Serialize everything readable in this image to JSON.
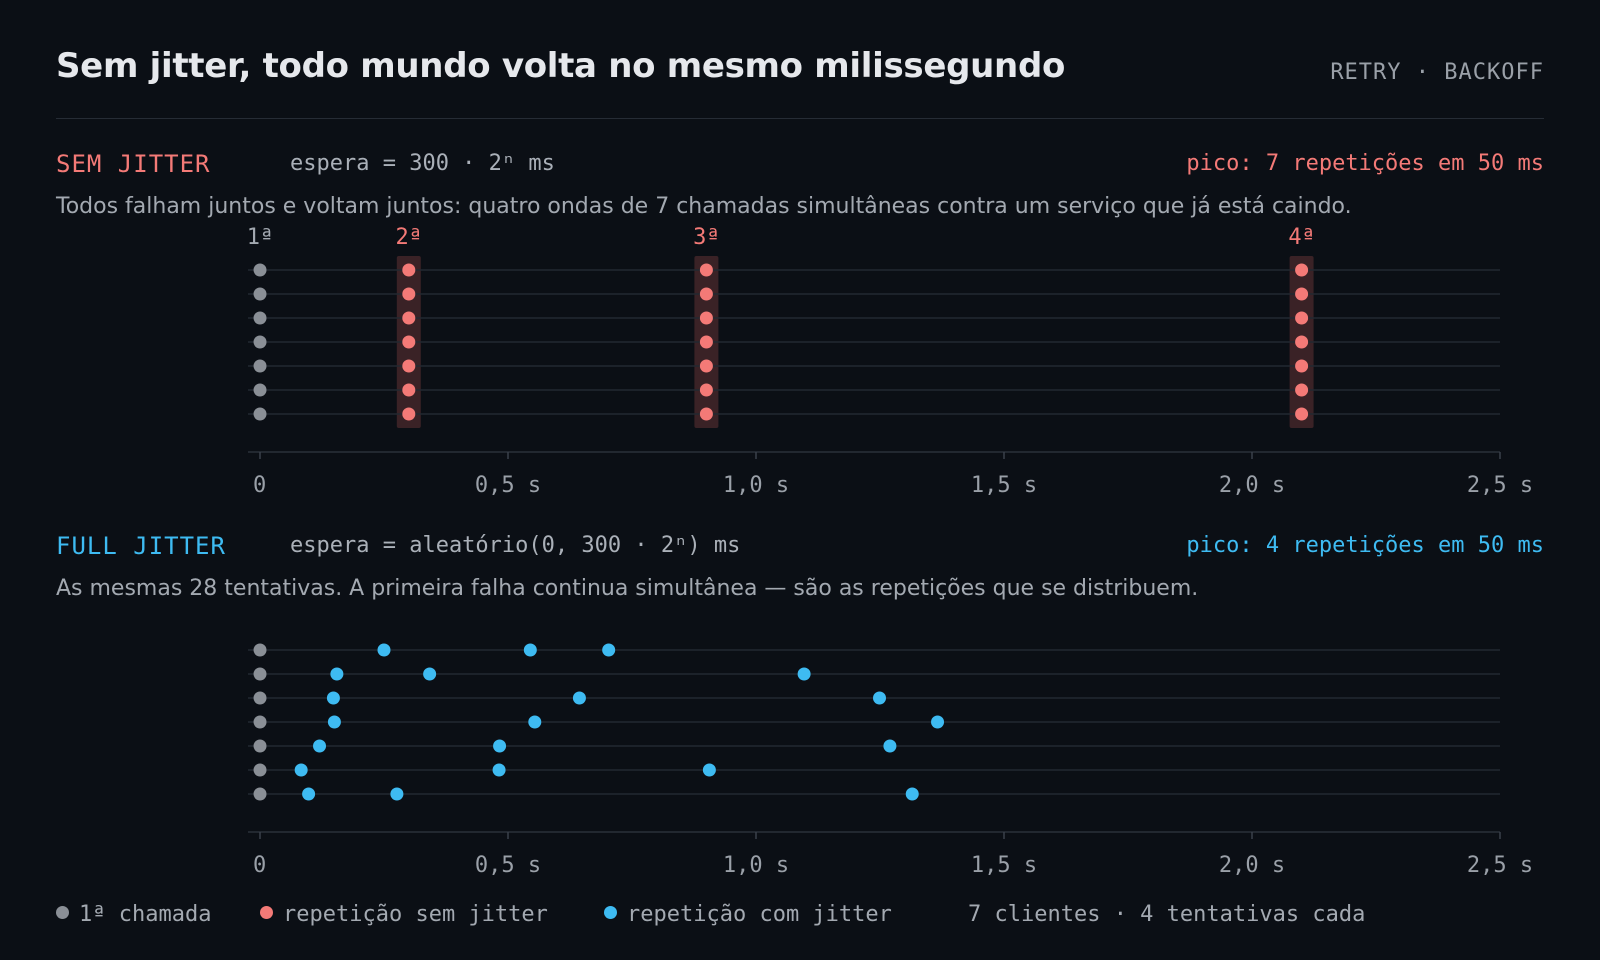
{
  "header": {
    "title": "Sem jitter, todo mundo volta no mesmo milissegundo",
    "kicker": "RETRY · BACKOFF"
  },
  "panels": [
    {
      "label": "SEM JITTER",
      "formula": "espera = 300 · 2ⁿ ms",
      "peak": "pico: 7 repetições em 50 ms",
      "description": "Todos falham juntos e voltam juntos: quatro ondas de 7 chamadas simultâneas contra um serviço que já está caindo."
    },
    {
      "label": "FULL JITTER",
      "formula": "espera = aleatório(0, 300 · 2ⁿ) ms",
      "peak": "pico: 4 repetições em 50 ms",
      "description": "As mesmas 28 tentativas. A primeira falha continua simultânea — são as repetições que se distribuem."
    }
  ],
  "legend": {
    "first": "1ª chamada",
    "retry_no_jitter": "repetição sem jitter",
    "retry_jitter": "repetição com jitter",
    "note": "7 clientes · 4 tentativas cada"
  },
  "colors": {
    "first": "#8a8f96",
    "no_jitter": "#f47a77",
    "jitter": "#3ebbf2",
    "grid": "#232931",
    "band": "#3a2226"
  },
  "chart_data": [
    {
      "type": "scatter",
      "name": "sem-jitter",
      "x_unit": "s",
      "xlim": [
        0,
        2.5
      ],
      "x_ticks": [
        0,
        0.5,
        1.0,
        1.5,
        2.0,
        2.5
      ],
      "x_tick_labels": [
        "0",
        "0,5 s",
        "1,0 s",
        "1,5 s",
        "2,0 s",
        "2,5 s"
      ],
      "clients": 7,
      "wave_labels": [
        "1ª",
        "2ª",
        "3ª",
        "4ª"
      ],
      "wave_times": [
        0,
        0.3,
        0.9,
        2.1
      ],
      "first_call": [
        0,
        0,
        0,
        0,
        0,
        0,
        0
      ],
      "retries": [
        [
          0.3,
          0.9,
          2.1
        ],
        [
          0.3,
          0.9,
          2.1
        ],
        [
          0.3,
          0.9,
          2.1
        ],
        [
          0.3,
          0.9,
          2.1
        ],
        [
          0.3,
          0.9,
          2.1
        ],
        [
          0.3,
          0.9,
          2.1
        ],
        [
          0.3,
          0.9,
          2.1
        ]
      ]
    },
    {
      "type": "scatter",
      "name": "full-jitter",
      "x_unit": "s",
      "xlim": [
        0,
        2.5
      ],
      "x_ticks": [
        0,
        0.5,
        1.0,
        1.5,
        2.0,
        2.5
      ],
      "x_tick_labels": [
        "0",
        "0,5 s",
        "1,0 s",
        "1,5 s",
        "2,0 s",
        "2,5 s"
      ],
      "clients": 7,
      "first_call": [
        0,
        0,
        0,
        0,
        0,
        0,
        0
      ],
      "retries": [
        [
          0.25,
          0.545,
          0.703
        ],
        [
          0.155,
          0.342,
          1.097
        ],
        [
          0.148,
          0.644,
          1.249
        ],
        [
          0.15,
          0.554,
          1.366
        ],
        [
          0.12,
          0.483,
          1.27
        ],
        [
          0.083,
          0.482,
          0.906
        ],
        [
          0.098,
          0.276,
          1.315
        ]
      ]
    }
  ]
}
